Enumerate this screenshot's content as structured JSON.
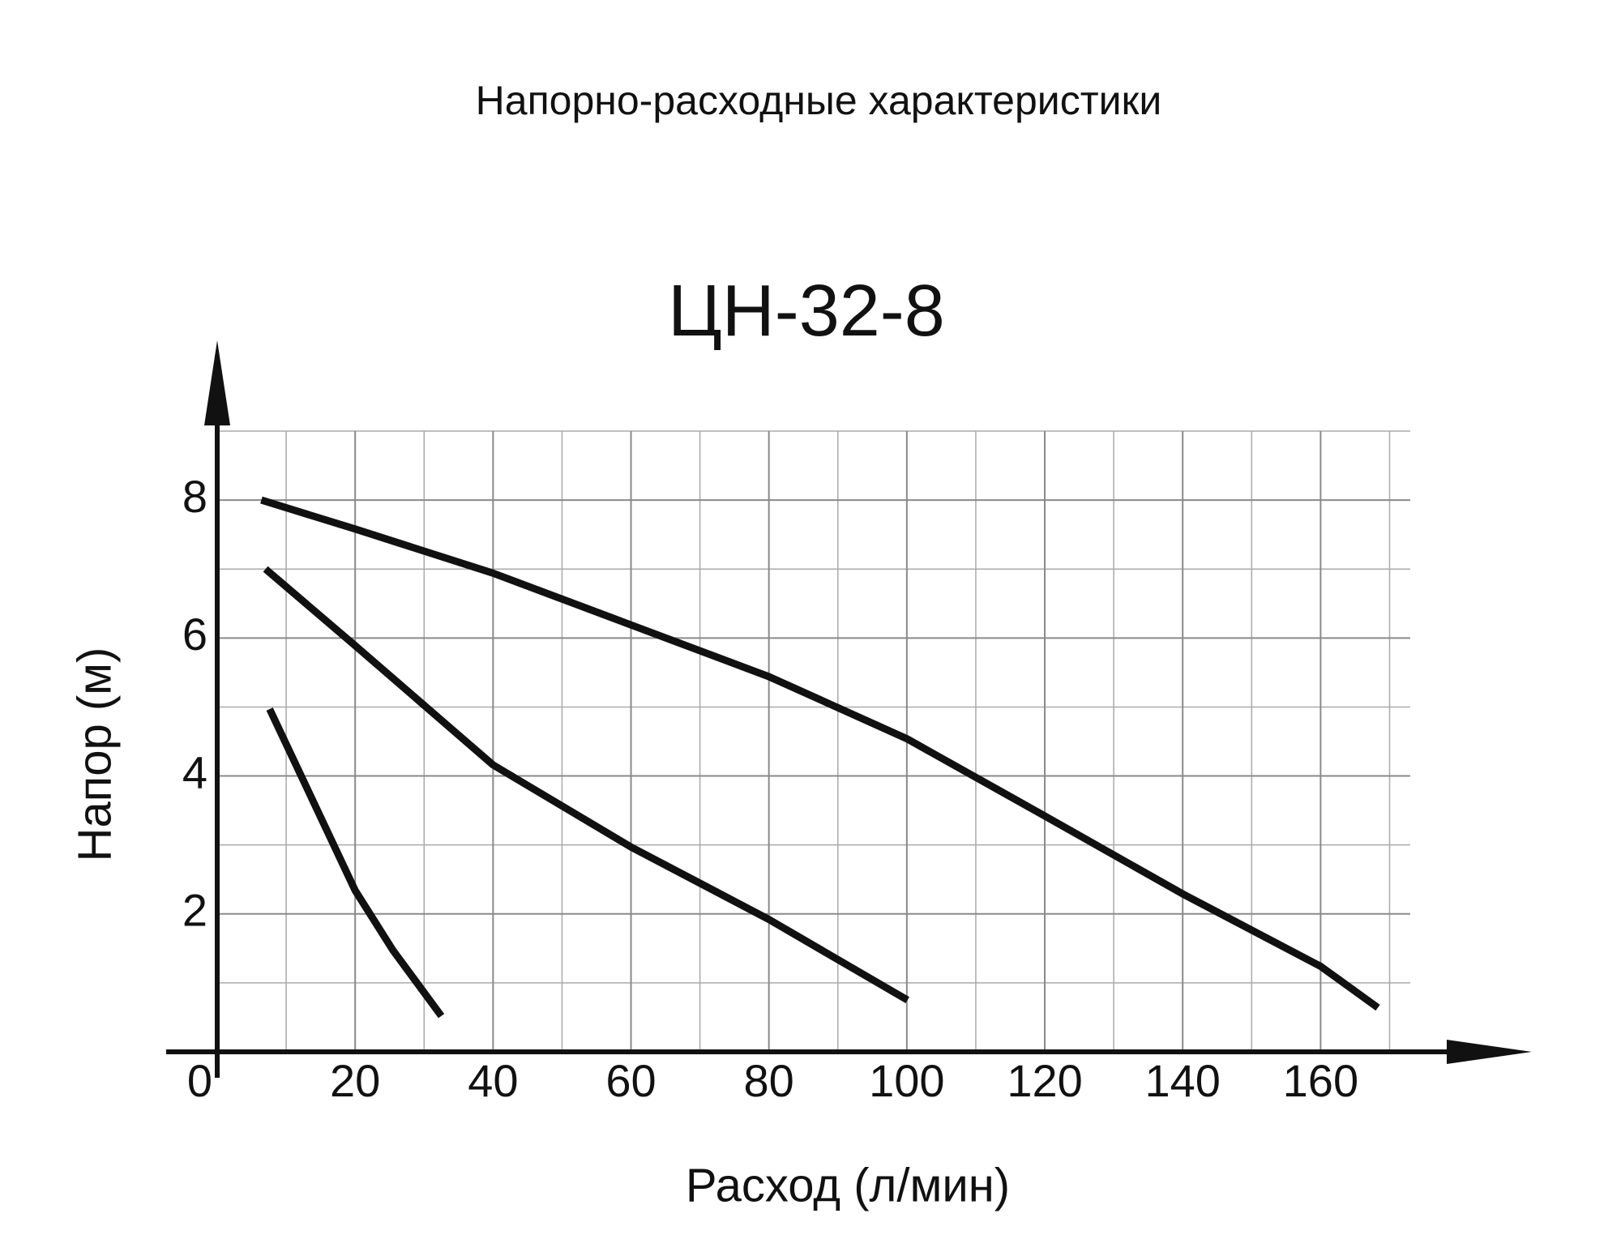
{
  "chart_data": {
    "type": "line",
    "subtitle": "Напорно-расходные характеристики",
    "title": "ЦН-32-8",
    "x_label": "Расход (л/мин)",
    "y_label": "Напор (м)",
    "xlim": [
      0,
      173
    ],
    "ylim": [
      0,
      9
    ],
    "xticks": [
      0,
      20,
      40,
      60,
      80,
      100,
      120,
      140,
      160
    ],
    "yticks": [
      2,
      4,
      6,
      8
    ],
    "grid": true,
    "series": [
      {
        "color": "#111111",
        "x": [
          6.4,
          20,
          40,
          60,
          80,
          100,
          120,
          140,
          160,
          168.3
        ],
        "values": [
          8.0,
          7.58,
          6.94,
          6.19,
          5.44,
          4.54,
          3.42,
          2.29,
          1.24,
          0.64
        ]
      },
      {
        "color": "#111111",
        "x": [
          7.0,
          20,
          40,
          60,
          80,
          100.1
        ],
        "values": [
          7.0,
          5.89,
          4.16,
          2.97,
          1.92,
          0.75
        ]
      },
      {
        "color": "#111111",
        "x": [
          7.6,
          13.5,
          20,
          25.5,
          32.5
        ],
        "values": [
          4.97,
          3.72,
          2.34,
          1.47,
          0.52
        ]
      }
    ]
  }
}
